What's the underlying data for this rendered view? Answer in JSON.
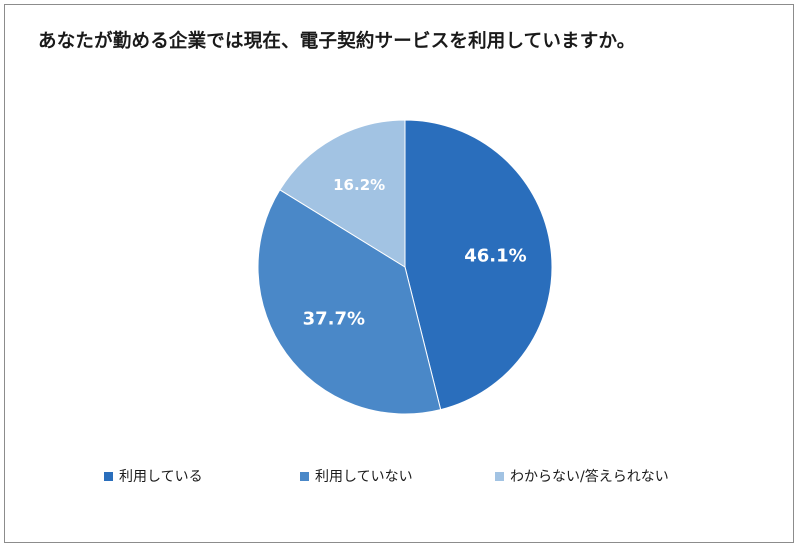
{
  "title": "あなたが勤める企業では現在、電子契約サービスを利用していますか。",
  "chart_data": {
    "type": "pie",
    "title": "あなたが勤める企業では現在、電子契約サービスを利用していますか。",
    "categories": [
      "利用している",
      "利用していない",
      "わからない/答えられない"
    ],
    "values": [
      46.1,
      37.7,
      16.2
    ],
    "labels": [
      "46.1%",
      "37.7%",
      "16.2%"
    ],
    "colors": [
      "#2a6ebc",
      "#4a88c8",
      "#a2c3e3"
    ],
    "label_colors": [
      "#ffffff",
      "#ffffff",
      "#ffffff"
    ],
    "start_angle": "12 o'clock",
    "direction": "clockwise",
    "legend_position": "bottom"
  }
}
